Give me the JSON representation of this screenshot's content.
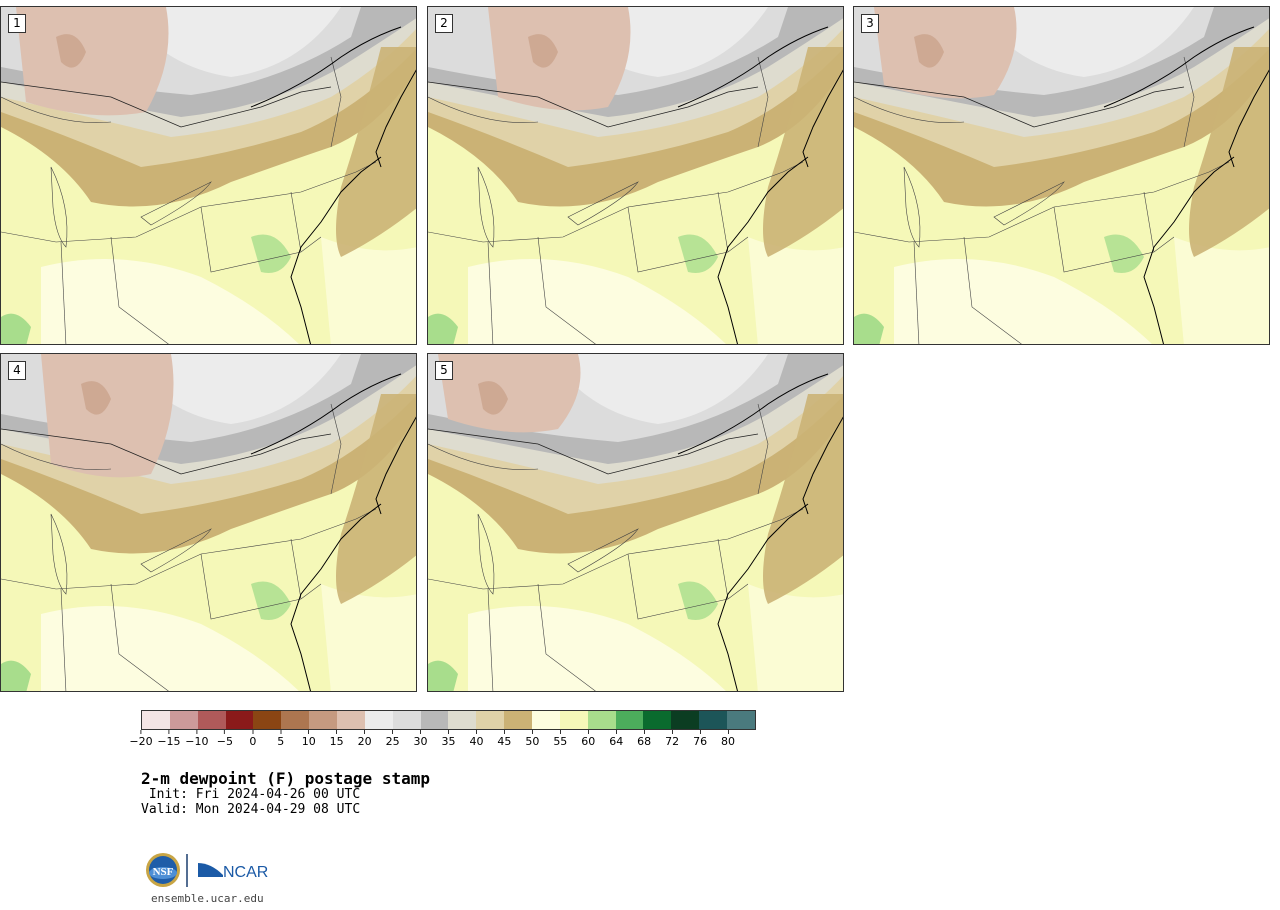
{
  "panels": [
    {
      "label": "1"
    },
    {
      "label": "2"
    },
    {
      "label": "3"
    },
    {
      "label": "4"
    },
    {
      "label": "5"
    }
  ],
  "colorbar": {
    "colors": [
      "#f3e4e4",
      "#cc9a9a",
      "#b05a5a",
      "#8b1a1a",
      "#8b4513",
      "#ad7650",
      "#c59a80",
      "#ddc0b0",
      "#ececec",
      "#dcdcdc",
      "#b8b8b8",
      "#dedccf",
      "#e0d2a8",
      "#cbb275",
      "#fdfde0",
      "#f5f8b8",
      "#a8dd8c",
      "#4cad5c",
      "#0a6b2e",
      "#0b3d22",
      "#1c5558",
      "#4a7a7e"
    ],
    "ticks": [
      "−20",
      "−15",
      "−10",
      "−5",
      "0",
      "5",
      "10",
      "15",
      "20",
      "25",
      "30",
      "35",
      "40",
      "45",
      "50",
      "55",
      "60",
      "64",
      "68",
      "72",
      "76",
      "80"
    ]
  },
  "title": "2-m dewpoint (F) postage stamp",
  "init_line": " Init: Fri 2024-04-26 00 UTC",
  "valid_line": "Valid: Mon 2024-04-29 08 UTC",
  "footer_url": "ensemble.ucar.edu",
  "logo": {
    "left_text": "NSF",
    "right_text": "NCAR"
  }
}
